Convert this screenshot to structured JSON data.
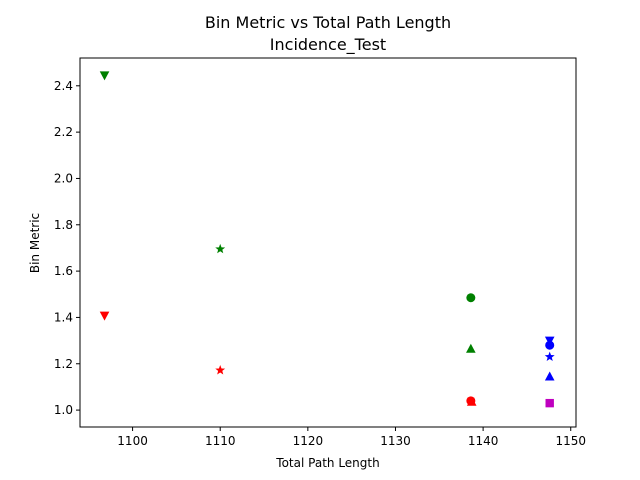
{
  "chart_data": {
    "type": "scatter",
    "title": "Bin Metric vs Total Path Length",
    "subtitle": "Incidence_Test",
    "xlabel": "Total Path Length",
    "ylabel": "Bin Metric",
    "xlim": [
      1094,
      1150.6
    ],
    "ylim": [
      0.927,
      2.52
    ],
    "xticks": [
      1100,
      1110,
      1120,
      1130,
      1140,
      1150
    ],
    "yticks": [
      1.0,
      1.2,
      1.4,
      1.6,
      1.8,
      2.0,
      2.2,
      2.4
    ],
    "grid": false,
    "legend": "none",
    "points": [
      {
        "x": 1096.8,
        "y": 2.445,
        "marker": "triangle-down",
        "color": "#008000"
      },
      {
        "x": 1096.8,
        "y": 1.408,
        "marker": "triangle-down",
        "color": "#ff0000"
      },
      {
        "x": 1110.0,
        "y": 1.695,
        "marker": "star",
        "color": "#008000"
      },
      {
        "x": 1110.0,
        "y": 1.172,
        "marker": "star",
        "color": "#ff0000"
      },
      {
        "x": 1138.6,
        "y": 1.485,
        "marker": "circle",
        "color": "#008000"
      },
      {
        "x": 1138.6,
        "y": 1.265,
        "marker": "triangle-up",
        "color": "#008000"
      },
      {
        "x": 1138.6,
        "y": 1.04,
        "marker": "circle",
        "color": "#ff0000"
      },
      {
        "x": 1138.7,
        "y": 1.036,
        "marker": "triangle-up",
        "color": "#ff0000"
      },
      {
        "x": 1147.6,
        "y": 1.3,
        "marker": "triangle-down",
        "color": "#0000ff"
      },
      {
        "x": 1147.6,
        "y": 1.28,
        "marker": "circle",
        "color": "#0000ff"
      },
      {
        "x": 1147.6,
        "y": 1.23,
        "marker": "star",
        "color": "#0000ff"
      },
      {
        "x": 1147.6,
        "y": 1.145,
        "marker": "triangle-up",
        "color": "#0000ff"
      },
      {
        "x": 1147.6,
        "y": 1.03,
        "marker": "square",
        "color": "#bf00bf"
      }
    ]
  }
}
